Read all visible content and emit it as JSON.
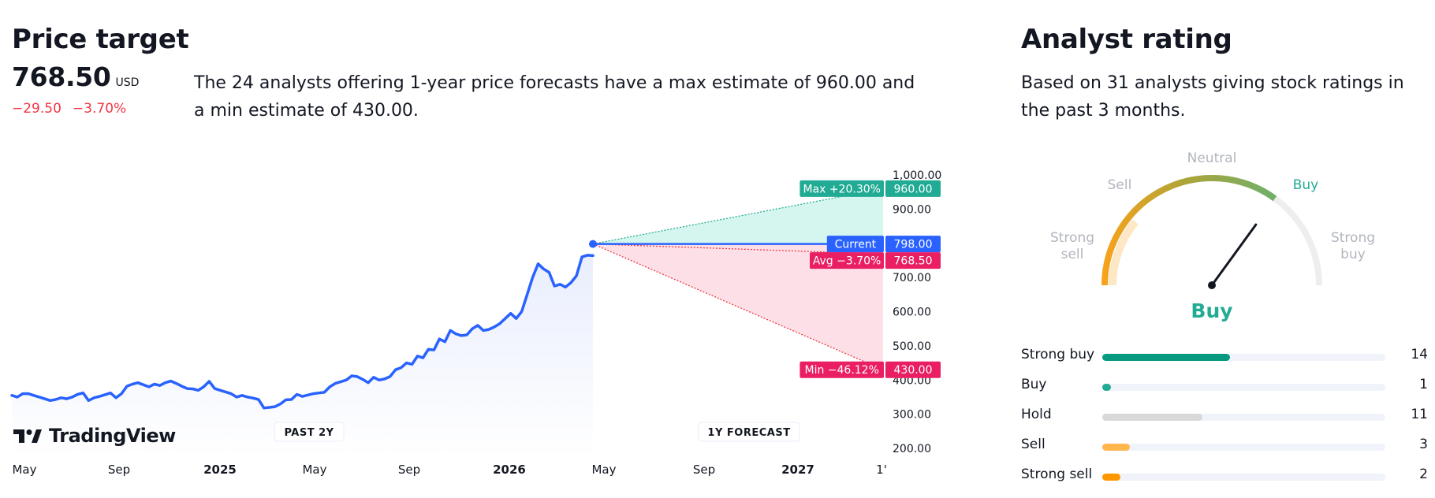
{
  "price_target": {
    "title": "Price target",
    "value": "768.50",
    "currency": "USD",
    "change": "−29.50",
    "change_percent": "−3.70%",
    "description": "The 24 analysts offering 1-year price forecasts have a max estimate of 960.00 and a min estimate of 430.00."
  },
  "chart_data": {
    "type": "line",
    "title": "",
    "brand": "TradingView",
    "x_tick_labels": [
      "May",
      "Sep",
      "2025",
      "May",
      "Sep",
      "2026",
      "May",
      "Sep",
      "2027",
      "1'"
    ],
    "x_tick_bold": [
      false,
      false,
      true,
      false,
      false,
      true,
      false,
      false,
      true,
      false
    ],
    "y_tick_labels": [
      "1,000.00",
      "900.00",
      "800.00",
      "700.00",
      "600.00",
      "500.00",
      "400.00",
      "300.00",
      "200.00"
    ],
    "y_ticks": [
      1000,
      900,
      800,
      700,
      600,
      500,
      400,
      300,
      200
    ],
    "ylim": [
      180,
      1020
    ],
    "period_labels": [
      "PAST 2Y",
      "1Y FORECAST"
    ],
    "price_history": [
      355,
      350,
      360,
      360,
      355,
      350,
      345,
      340,
      343,
      348,
      345,
      350,
      358,
      362,
      340,
      348,
      352,
      357,
      362,
      348,
      360,
      382,
      388,
      392,
      386,
      380,
      388,
      384,
      392,
      397,
      390,
      382,
      375,
      374,
      370,
      380,
      396,
      375,
      370,
      365,
      360,
      350,
      355,
      350,
      347,
      343,
      318,
      320,
      322,
      330,
      342,
      343,
      358,
      352,
      356,
      360,
      362,
      364,
      380,
      390,
      395,
      400,
      412,
      410,
      402,
      392,
      408,
      400,
      403,
      410,
      430,
      436,
      450,
      446,
      470,
      465,
      490,
      488,
      520,
      512,
      545,
      535,
      530,
      532,
      550,
      560,
      545,
      548,
      555,
      565,
      580,
      595,
      580,
      600,
      650,
      700,
      740,
      725,
      715,
      675,
      680,
      672,
      685,
      705,
      760,
      765,
      764
    ],
    "forecast": {
      "current": 798,
      "max": 960,
      "avg": 768.5,
      "min": 430
    },
    "badges": {
      "max": {
        "label": "Max +20.30%",
        "value": "960.00",
        "color": "#22ab94"
      },
      "current": {
        "label": "Current",
        "value": "798.00",
        "color": "#2962ff"
      },
      "avg": {
        "label": "Avg −3.70%",
        "value": "768.50",
        "color": "#e91e63"
      },
      "min": {
        "label": "Min −46.12%",
        "value": "430.00",
        "color": "#e91e63"
      }
    },
    "colors": {
      "line": "#2962ff",
      "area": "#e9eefd",
      "max_fill": "#d5f6ee",
      "min_fill": "#fde0e7",
      "max_line": "#22ab94",
      "min_line": "#f23645"
    }
  },
  "analyst_rating": {
    "title": "Analyst rating",
    "description": "Based on 31 analysts giving stock ratings in the past 3 months.",
    "gauge": {
      "labels": [
        "Strong sell",
        "Sell",
        "Neutral",
        "Buy",
        "Strong buy"
      ],
      "active": "Buy",
      "result": "Buy",
      "result_color": "#22ab94",
      "needle_fraction": 0.7
    },
    "ratings": [
      {
        "label": "Strong buy",
        "count": "14",
        "fraction": 0.452,
        "color": "#089981"
      },
      {
        "label": "Buy",
        "count": "1",
        "fraction": 0.032,
        "color": "#22ab94"
      },
      {
        "label": "Hold",
        "count": "11",
        "fraction": 0.355,
        "color": "#d9d9d9"
      },
      {
        "label": "Sell",
        "count": "3",
        "fraction": 0.097,
        "color": "#ffb74d"
      },
      {
        "label": "Strong sell",
        "count": "2",
        "fraction": 0.065,
        "color": "#ff9800"
      }
    ]
  }
}
